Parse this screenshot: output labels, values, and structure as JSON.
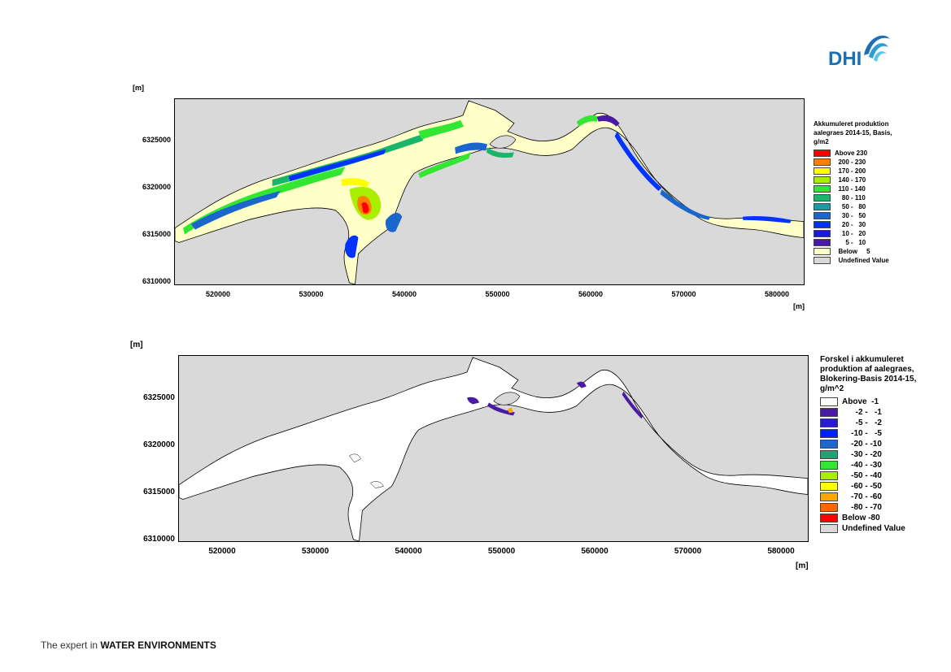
{
  "brand": {
    "logo_text": "DHI",
    "tagline_prefix": "The expert in ",
    "tagline_emphasis": "WATER ENVIRONMENTS",
    "logo_colors": [
      "#2a9fd6",
      "#1c6fb3",
      "#5bc4e8"
    ]
  },
  "map1": {
    "y_unit": "[m]",
    "x_unit": "[m]",
    "y_ticks": [
      "6325000",
      "6320000",
      "6315000",
      "6310000"
    ],
    "x_ticks": [
      "520000",
      "530000",
      "540000",
      "550000",
      "560000",
      "570000",
      "580000"
    ],
    "legend_title": [
      "Akkumuleret produktion",
      "aalegraes 2014-15, Basis,",
      "g/m2"
    ],
    "legend": [
      {
        "label": "Above 230",
        "color": "#ff0000"
      },
      {
        "label": "  200 - 230",
        "color": "#ff7f00"
      },
      {
        "label": "  170 - 200",
        "color": "#ffff00"
      },
      {
        "label": "  140 - 170",
        "color": "#a8f000"
      },
      {
        "label": "  110 - 140",
        "color": "#33e633"
      },
      {
        "label": "    80 - 110",
        "color": "#19b56a"
      },
      {
        "label": "    50 -   80",
        "color": "#1a9aa6"
      },
      {
        "label": "    30 -   50",
        "color": "#1a66cc"
      },
      {
        "label": "    20 -   30",
        "color": "#0033ff"
      },
      {
        "label": "    10 -   20",
        "color": "#1a1ad6"
      },
      {
        "label": "      5 -   10",
        "color": "#4a1aa6"
      },
      {
        "label": "  Below     5",
        "color": "#ffffc8"
      },
      {
        "label": "  Undefined Value",
        "color": "#d9d9d9"
      }
    ]
  },
  "map2": {
    "y_unit": "[m]",
    "x_unit": "[m]",
    "y_ticks": [
      "6325000",
      "6320000",
      "6315000",
      "6310000"
    ],
    "x_ticks": [
      "520000",
      "530000",
      "540000",
      "550000",
      "560000",
      "570000",
      "580000"
    ],
    "legend_title": [
      "Forskel i akkumuleret",
      "produktion af aalegraes,",
      "Blokering-Basis 2014-15,",
      "g/m^2"
    ],
    "legend": [
      {
        "label": "Above  -1",
        "color": "#ffffff"
      },
      {
        "label": "      -2 -   -1",
        "color": "#4a1aa6"
      },
      {
        "label": "      -5 -   -2",
        "color": "#2a1ad0"
      },
      {
        "label": "    -10 -   -5",
        "color": "#0022ff"
      },
      {
        "label": "    -20 - -10",
        "color": "#1a6acc"
      },
      {
        "label": "    -30 - -20",
        "color": "#1aa673"
      },
      {
        "label": "    -40 - -30",
        "color": "#33e633"
      },
      {
        "label": "    -50 - -40",
        "color": "#a8f000"
      },
      {
        "label": "    -60 - -50",
        "color": "#ffff00"
      },
      {
        "label": "    -70 - -60",
        "color": "#ffa500"
      },
      {
        "label": "    -80 - -70",
        "color": "#ff6600"
      },
      {
        "label": "Below -80",
        "color": "#ff0000"
      },
      {
        "label": "Undefined Value",
        "color": "#d9d9d9"
      }
    ]
  }
}
